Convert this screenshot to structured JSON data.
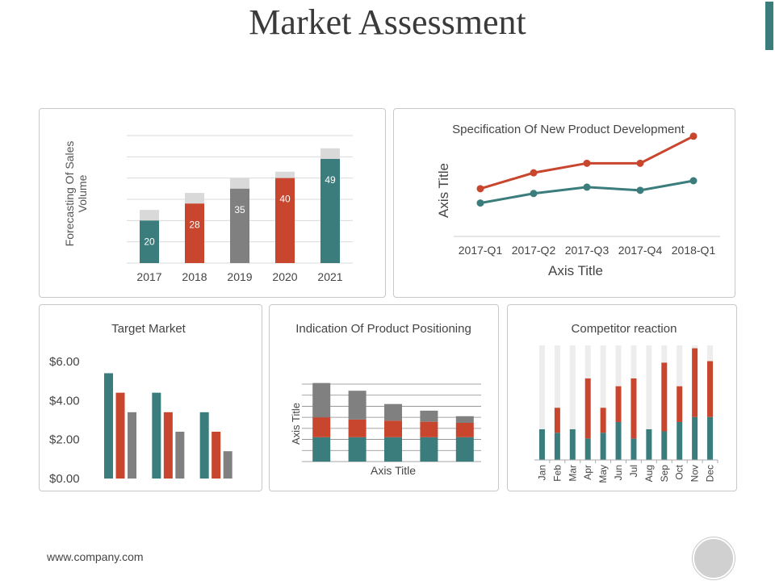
{
  "page": {
    "title": "Market Assessment",
    "footer": "www.company.com"
  },
  "colors": {
    "teal": "#3a7d7c",
    "red": "#c8452e",
    "gray": "#808080",
    "light_gray": "#d9d9d9",
    "faint": "#ededed"
  },
  "chart_data": [
    {
      "id": "sales",
      "type": "bar",
      "ylabel": "Forecasting Of Sales Volume",
      "categories": [
        "2017",
        "2018",
        "2019",
        "2020",
        "2021"
      ],
      "values": [
        20,
        28,
        35,
        40,
        49
      ],
      "caps": [
        5,
        5,
        5,
        3,
        5
      ],
      "bar_colors": [
        "teal",
        "red",
        "gray",
        "red",
        "teal"
      ],
      "ylim": [
        0,
        60
      ],
      "grid": true
    },
    {
      "id": "spec",
      "type": "line",
      "title": "Specification Of New Product Development",
      "xlabel": "Axis Title",
      "ylabel": "Axis Title",
      "categories": [
        "2017-Q1",
        "2017-Q2",
        "2017-Q3",
        "2017-Q4",
        "2018-Q1"
      ],
      "series": [
        {
          "values": [
            3.0,
            4.0,
            4.6,
            4.6,
            6.3
          ],
          "color": "red"
        },
        {
          "values": [
            2.1,
            2.7,
            3.1,
            2.9,
            3.5
          ],
          "color": "teal"
        }
      ],
      "ylim": [
        0,
        7
      ],
      "grid": false
    },
    {
      "id": "target",
      "type": "bar",
      "title": "Target Market",
      "ytick_labels": [
        "$0.00",
        "$2.00",
        "$4.00",
        "$6.00"
      ],
      "ytick_values": [
        0,
        2,
        4,
        6
      ],
      "groups": 3,
      "series": [
        {
          "values": [
            5.4,
            4.4,
            3.4
          ],
          "color": "teal"
        },
        {
          "values": [
            4.4,
            3.4,
            2.4
          ],
          "color": "red"
        },
        {
          "values": [
            3.4,
            2.4,
            1.4
          ],
          "color": "gray"
        }
      ],
      "ylim": [
        0,
        6
      ],
      "grid": false
    },
    {
      "id": "positioning",
      "type": "bar",
      "stacked": true,
      "title": "Indication Of Product Positioning",
      "xlabel": "Axis Title",
      "ylabel": "Axis Title",
      "groups": 5,
      "series": [
        {
          "values": [
            2.2,
            2.2,
            2.2,
            2.2,
            2.2
          ],
          "color": "teal"
        },
        {
          "values": [
            1.8,
            1.6,
            1.5,
            1.4,
            1.3
          ],
          "color": "red"
        },
        {
          "values": [
            3.1,
            2.6,
            1.5,
            1.0,
            0.6
          ],
          "color": "gray"
        }
      ],
      "ylim": [
        0,
        7
      ],
      "grid": true
    },
    {
      "id": "competitor",
      "type": "bar",
      "stacked": true,
      "title": "Competitor reaction",
      "categories": [
        "Jan",
        "Feb",
        "Mar",
        "Apr",
        "May",
        "Jun",
        "Jul",
        "Aug",
        "Sep",
        "Oct",
        "Nov",
        "Dec"
      ],
      "series": [
        {
          "values": [
            4.3,
            3.8,
            4.3,
            3.0,
            3.8,
            5.3,
            3.0,
            4.3,
            4.0,
            5.3,
            6.0,
            6.0
          ],
          "color": "teal"
        },
        {
          "values": [
            0,
            3.5,
            0,
            8.4,
            3.5,
            5.0,
            8.4,
            0,
            9.6,
            5.0,
            9.6,
            7.8
          ],
          "color": "red"
        },
        {
          "values": [
            11.7,
            8.7,
            11.7,
            4.6,
            8.7,
            5.7,
            4.6,
            11.7,
            2.4,
            5.7,
            0.4,
            2.2
          ],
          "color": "faint"
        }
      ],
      "ylim": [
        0,
        16
      ],
      "grid": false
    }
  ]
}
